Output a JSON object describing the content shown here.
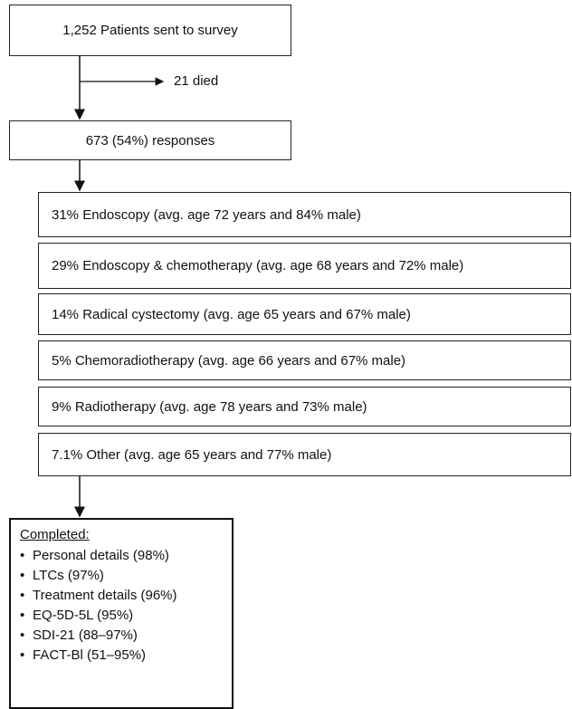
{
  "top_box": {
    "label": "1,252 Patients sent to survey"
  },
  "exclusion": {
    "label": "21 died"
  },
  "responses_box": {
    "label": "673 (54%) responses"
  },
  "treatments": [
    "31% Endoscopy (avg. age 72 years and 84% male)",
    "29% Endoscopy & chemotherapy (avg. age 68 years and 72% male)",
    "14% Radical cystectomy (avg. age 65 years and 67% male)",
    "5% Chemoradiotherapy (avg. age 66 years and 67% male)",
    "9% Radiotherapy (avg. age 78 years and 73% male)",
    "7.1% Other (avg. age 65 years and 77% male)"
  ],
  "completed": {
    "title": "Completed:",
    "items": [
      "Personal details (98%)",
      "LTCs  (97%)",
      "Treatment details (96%)",
      "EQ-5D-5L (95%)",
      "SDI-21 (88–97%)",
      "FACT-Bl (51–95%)"
    ]
  }
}
